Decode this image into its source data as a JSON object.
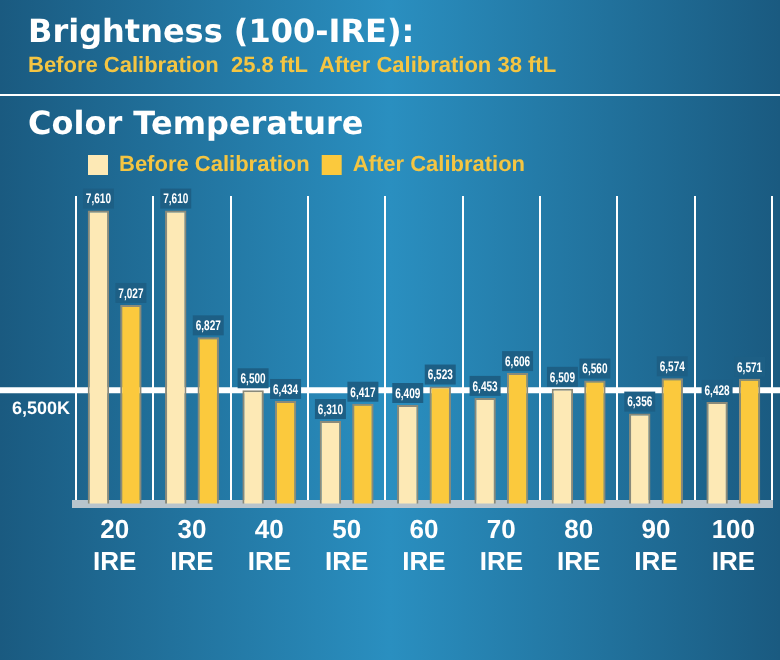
{
  "chart_data": {
    "type": "bar",
    "title": "Brightness (100-IRE):",
    "subtitle": "Before Calibration  25.8 ftL  After Calibration 38 ftL",
    "annotations": [
      "Color Temperature"
    ],
    "categories": [
      "20 IRE",
      "30 IRE",
      "40 IRE",
      "50 IRE",
      "60 IRE",
      "70 IRE",
      "80 IRE",
      "90 IRE",
      "100 IRE"
    ],
    "series": [
      {
        "name": "Before Calibration",
        "color": "#fde9b5",
        "values": [
          7610,
          7610,
          6500,
          6310,
          6409,
          6453,
          6509,
          6356,
          6428
        ],
        "value_labels": [
          "7,610",
          "7,610",
          "6,500",
          "6,310",
          "6,409",
          "6,453",
          "6,509",
          "6,356",
          "6,428"
        ]
      },
      {
        "name": "After Calibration",
        "color": "#fbc93d",
        "values": [
          7027,
          6827,
          6434,
          6417,
          6523,
          6606,
          6560,
          6574,
          6571
        ],
        "value_labels": [
          "7,027",
          "6,827",
          "6,434",
          "6,417",
          "6,523",
          "6,606",
          "6,560",
          "6,574",
          "6,571"
        ]
      }
    ],
    "ylim": [
      5800,
      7700
    ],
    "tick_labels": "x",
    "grid": "x",
    "legend": "top left",
    "ref_lines": [
      {
        "axis": "y",
        "value": 6500,
        "label": "6,500K",
        "color": "#ffffff"
      }
    ]
  }
}
